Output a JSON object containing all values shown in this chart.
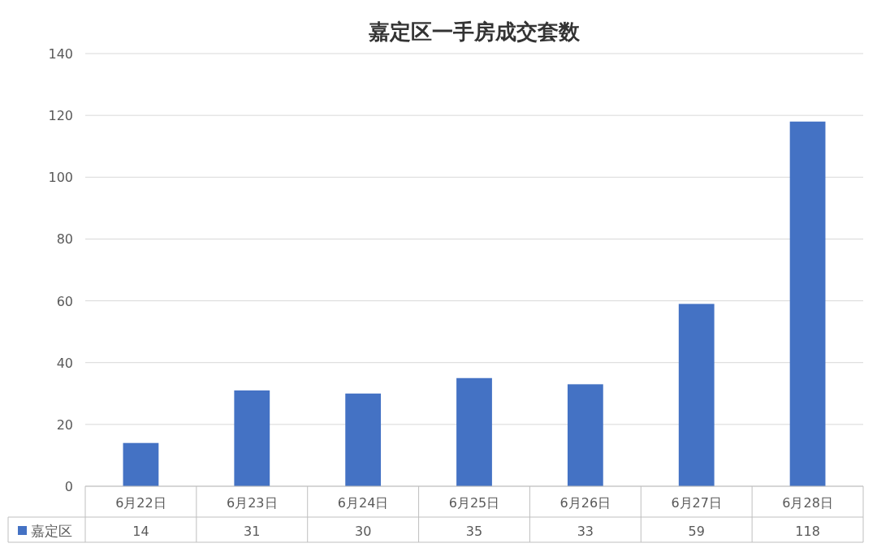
{
  "chart_data": {
    "type": "bar",
    "title": "嘉定区一手房成交套数",
    "categories": [
      "6月22日",
      "6月23日",
      "6月24日",
      "6月25日",
      "6月26日",
      "6月27日",
      "6月28日"
    ],
    "series": [
      {
        "name": "嘉定区",
        "color": "#4472c4",
        "values": [
          14,
          31,
          30,
          35,
          33,
          59,
          118
        ]
      }
    ],
    "ylim": [
      0,
      140
    ],
    "yticks": [
      0,
      20,
      40,
      60,
      80,
      100,
      120,
      140
    ],
    "grid": "y",
    "data_labels": true,
    "legend": "bottom"
  }
}
